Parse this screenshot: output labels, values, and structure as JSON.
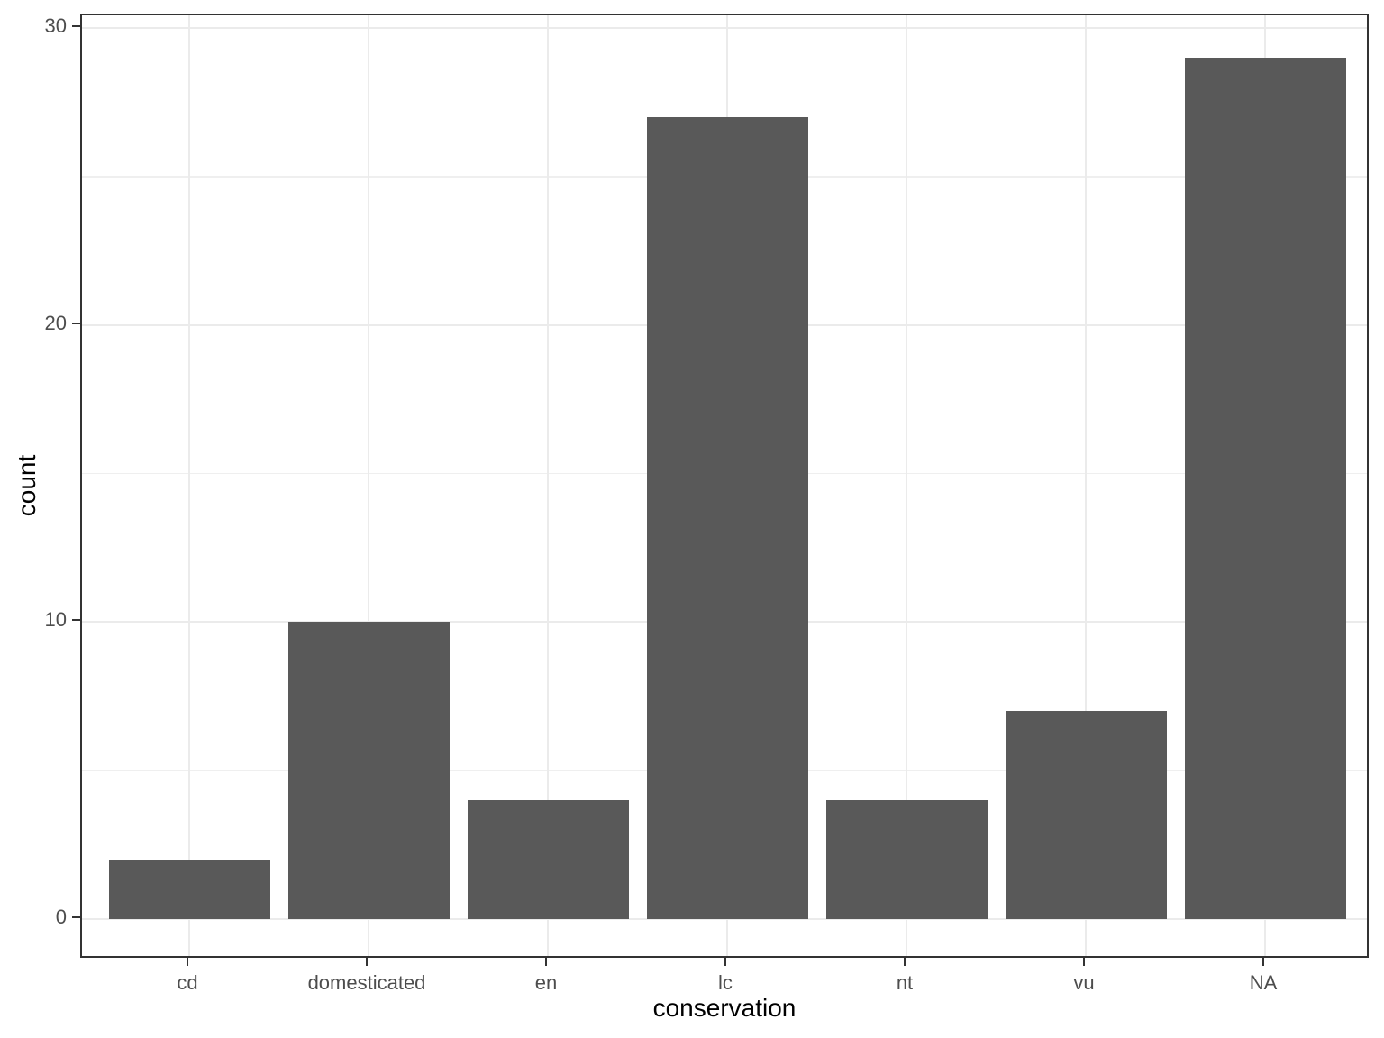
{
  "chart_data": {
    "type": "bar",
    "title": "",
    "xlabel": "conservation",
    "ylabel": "count",
    "categories": [
      "cd",
      "domesticated",
      "en",
      "lc",
      "nt",
      "vu",
      "NA"
    ],
    "values": [
      2,
      10,
      4,
      27,
      4,
      7,
      29
    ],
    "ylim": [
      0,
      30.45
    ],
    "y_major_ticks": [
      0,
      10,
      20,
      30
    ],
    "y_minor_gridlines": [
      5,
      15,
      25
    ],
    "grid": true,
    "legend": "none",
    "colors": {
      "bar_fill": "#595959",
      "panel_border": "#333333",
      "grid_major": "#ebebeb",
      "grid_minor": "#efefef",
      "axis_tick": "#333333",
      "axis_text": "#4d4d4d",
      "axis_title": "#000000",
      "background": "#ffffff"
    }
  }
}
